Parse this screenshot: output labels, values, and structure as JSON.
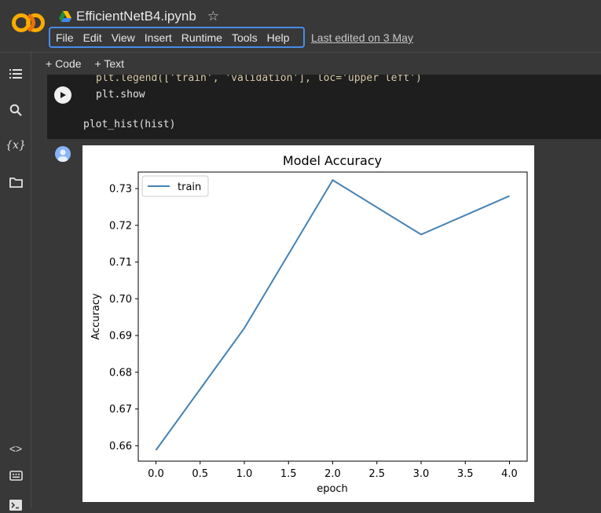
{
  "header": {
    "notebook_title": "EfficientNetB4.ipynb",
    "last_edited": "Last edited on 3 May"
  },
  "menu": [
    "File",
    "Edit",
    "View",
    "Insert",
    "Runtime",
    "Tools",
    "Help"
  ],
  "toolbar": {
    "add_code": "+ Code",
    "add_text": "+ Text"
  },
  "sidebar_icons": [
    "table-of-contents-icon",
    "search-icon",
    "variables-icon",
    "files-icon",
    "code-snippets-icon",
    "command-palette-icon",
    "terminal-icon"
  ],
  "code": {
    "line1": "plt.legend(['train', 'validation'], loc='upper left')",
    "line2": "plt.show",
    "line3": "plot_hist(hist)"
  },
  "colors": {
    "accent": "#4a8be8",
    "series": "#4682b4",
    "logo_orange": "#f9ab00"
  },
  "chart_data": {
    "type": "line",
    "title": "Model Accuracy",
    "xlabel": "epoch",
    "ylabel": "Accuracy",
    "x": [
      0,
      1,
      2,
      3,
      4
    ],
    "series": [
      {
        "name": "train",
        "values": [
          0.6588,
          0.692,
          0.7323,
          0.7175,
          0.728
        ]
      }
    ],
    "xlim": [
      -0.2,
      4.2
    ],
    "ylim": [
      0.6558,
      0.7345
    ],
    "xticks": [
      "0.0",
      "0.5",
      "1.0",
      "1.5",
      "2.0",
      "2.5",
      "3.0",
      "3.5",
      "4.0"
    ],
    "yticks": [
      "0.66",
      "0.67",
      "0.68",
      "0.69",
      "0.70",
      "0.71",
      "0.72",
      "0.73"
    ],
    "grid": false,
    "legend": "upper-left"
  }
}
